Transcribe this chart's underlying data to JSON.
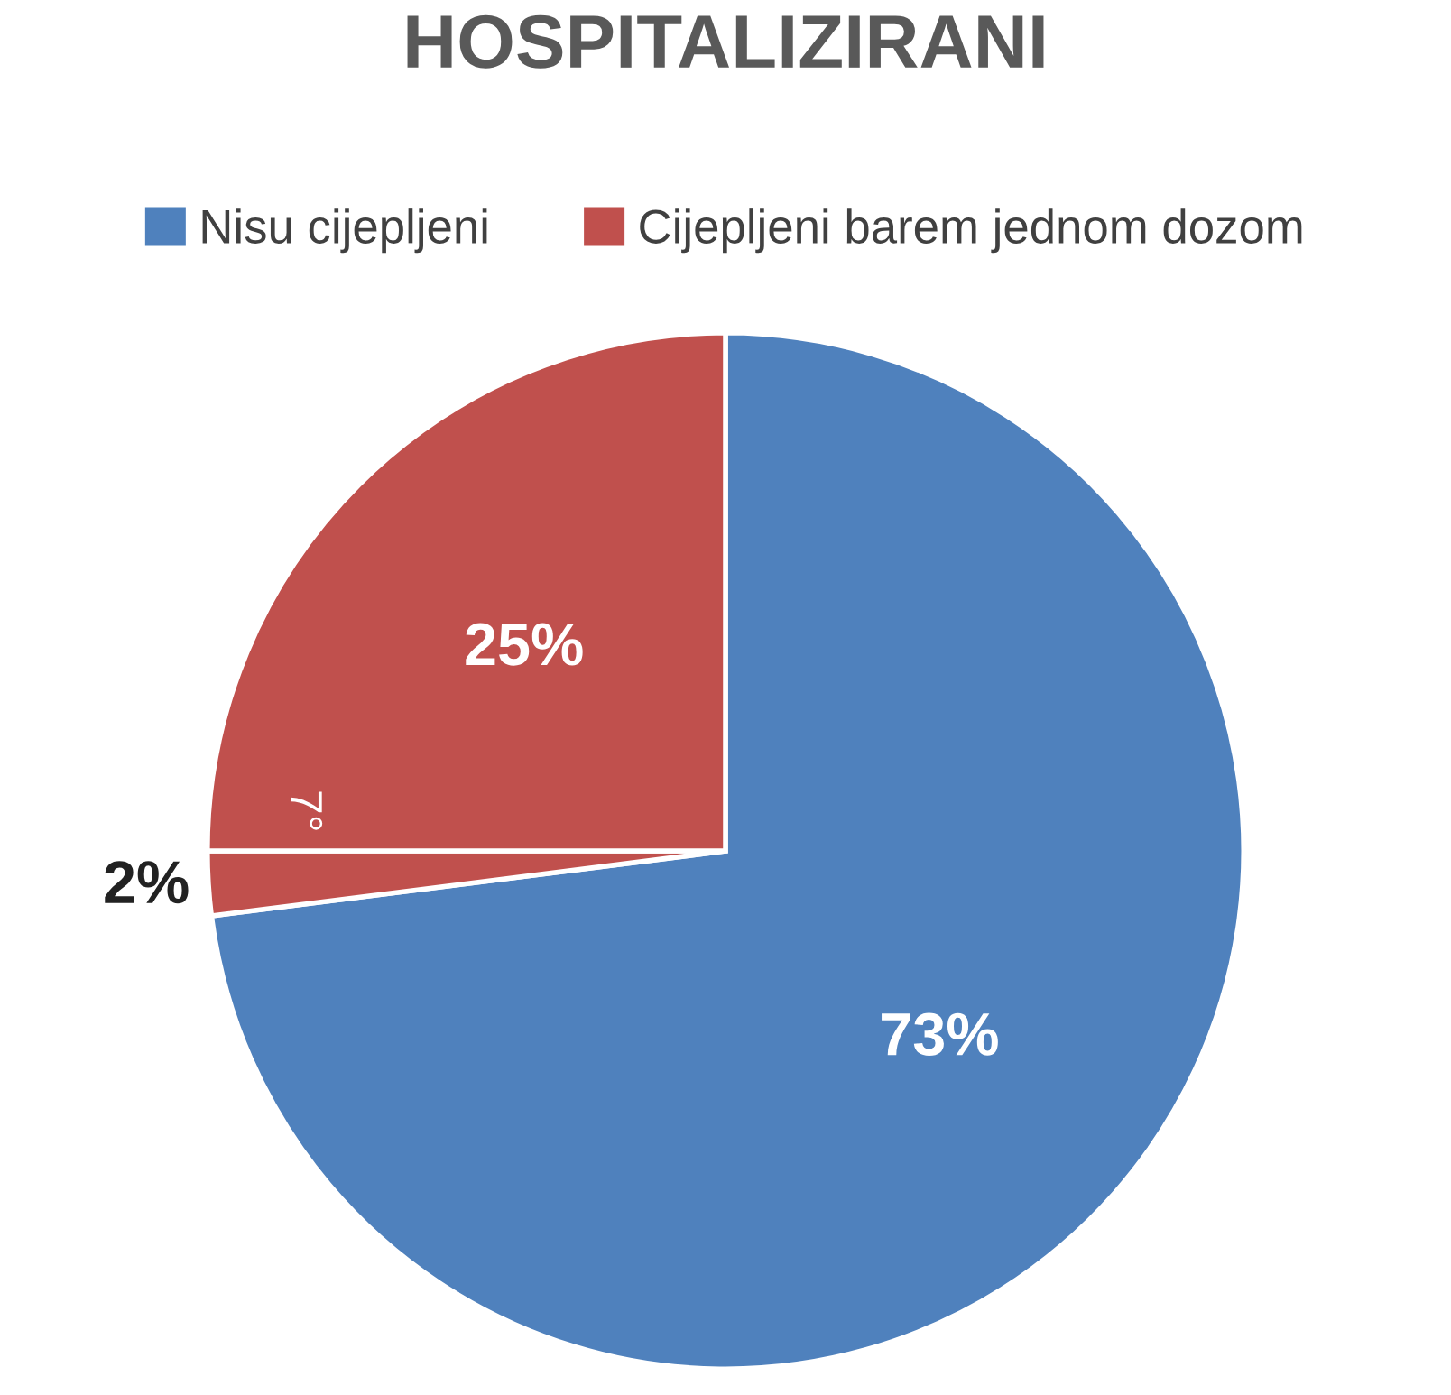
{
  "chart_data": {
    "type": "pie",
    "title": "HOSPITALIZIRANI",
    "categories": [
      "Nisu cijepljeni",
      null,
      "Cijepljeni barem jednom dozom"
    ],
    "values": [
      73,
      2,
      25
    ],
    "colors": [
      "#4f81bd",
      "#c0504d",
      "#c0504d"
    ],
    "value_labels": [
      "73%",
      "2%",
      "25%"
    ],
    "annotations": [
      "7°"
    ],
    "legend": "top"
  }
}
